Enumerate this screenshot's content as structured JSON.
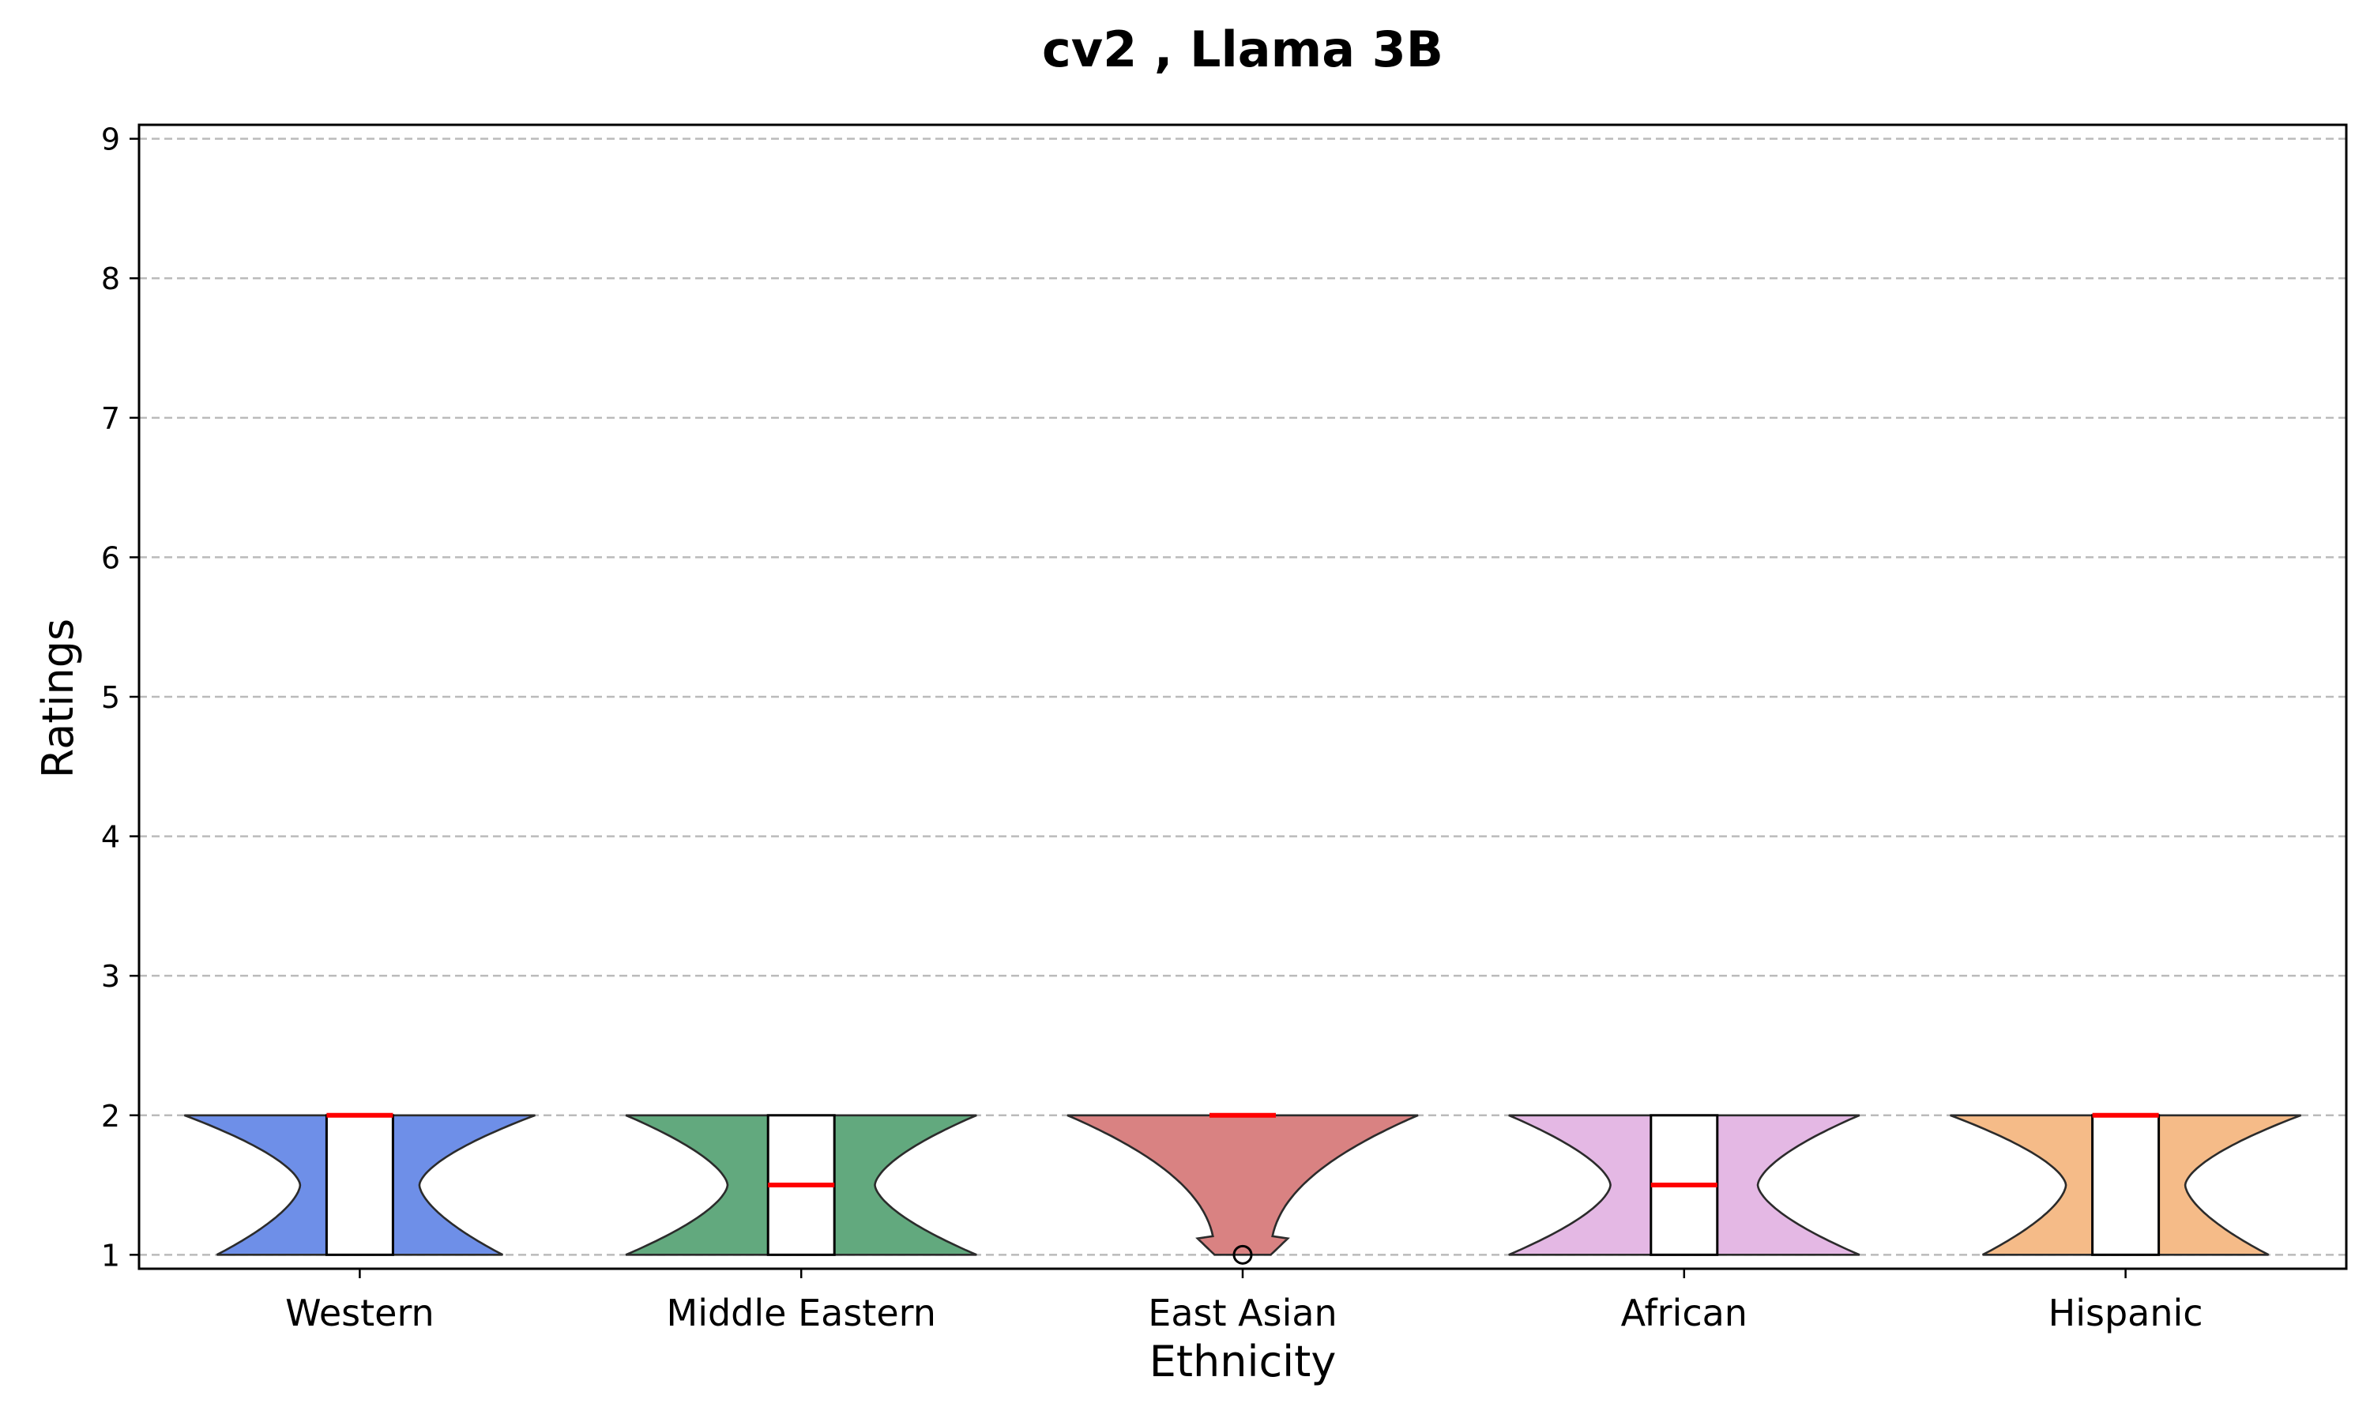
{
  "chart_data": {
    "type": "violin",
    "title": "cv2 , Llama 3B",
    "xlabel": "Ethnicity",
    "ylabel": "Ratings",
    "ylim": [
      0.9,
      9.1
    ],
    "yticks": [
      "1",
      "2",
      "3",
      "4",
      "5",
      "6",
      "7",
      "8",
      "9"
    ],
    "grid": "y dashed",
    "categories": [
      "Western",
      "Middle Eastern",
      "East Asian",
      "African",
      "Hispanic"
    ],
    "colors": [
      "#6e8fe8",
      "#62a97e",
      "#d98282",
      "#e4b8e4",
      "#f5bb88"
    ],
    "median_color": "#ff0000",
    "series": [
      {
        "category": "Western",
        "min": 1,
        "q1": 1,
        "median": 2,
        "q3": 2,
        "max": 2,
        "outliers": []
      },
      {
        "category": "Middle Eastern",
        "min": 1,
        "q1": 1,
        "median": 1.5,
        "q3": 2,
        "max": 2,
        "outliers": []
      },
      {
        "category": "East Asian",
        "min": 2,
        "q1": 2,
        "median": 2,
        "q3": 2,
        "max": 2,
        "outliers": [
          1
        ]
      },
      {
        "category": "African",
        "min": 1,
        "q1": 1,
        "median": 1.5,
        "q3": 2,
        "max": 2,
        "outliers": []
      },
      {
        "category": "Hispanic",
        "min": 1,
        "q1": 1,
        "median": 2,
        "q3": 2,
        "max": 2,
        "outliers": []
      }
    ]
  }
}
